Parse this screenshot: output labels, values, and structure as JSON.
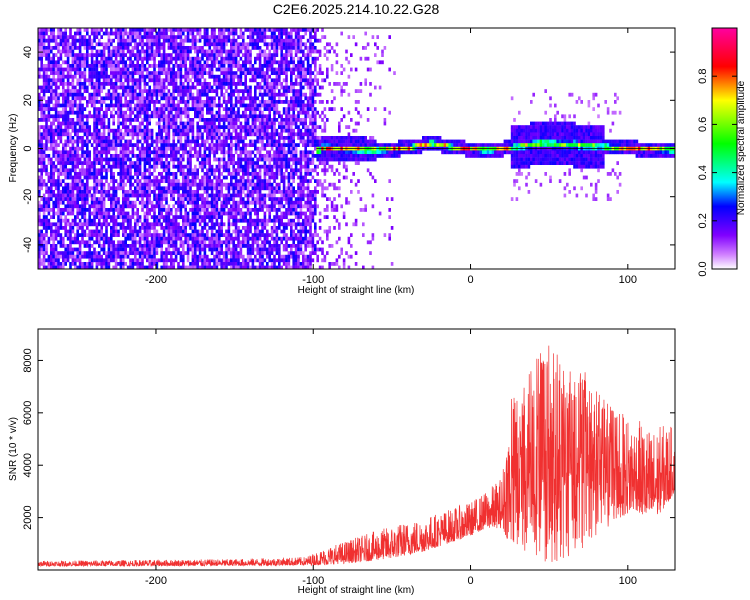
{
  "title": "C2E6.2025.214.10.22.G28",
  "chart_data": [
    {
      "type": "heatmap",
      "title": "C2E6.2025.214.10.22.G28",
      "xlabel": "Height of straight line (km)",
      "ylabel": "Frequency (Hz)",
      "xlim": [
        -275,
        130
      ],
      "ylim": [
        -50,
        50
      ],
      "x_ticks": [
        -200,
        -100,
        0,
        100
      ],
      "y_ticks": [
        -40,
        -20,
        0,
        20,
        40
      ],
      "x_tick_labels": [
        "-200",
        "-100",
        "0",
        "100"
      ],
      "y_tick_labels": [
        "-40",
        "-20",
        "0",
        "20",
        "40"
      ],
      "colorbar": {
        "label": "Normalized spectral amplitude",
        "range": [
          0,
          1
        ],
        "ticks": [
          0.0,
          0.2,
          0.4,
          0.6,
          0.8
        ],
        "tick_labels": [
          "0.0",
          "0.2",
          "0.4",
          "0.6",
          "0.8"
        ],
        "colormap": [
          "#ffffff",
          "#d080ff",
          "#8000ff",
          "#0000ff",
          "#00ffff",
          "#00ff00",
          "#ffff00",
          "#ff0000",
          "#ff00a0"
        ]
      },
      "noise_region_x": [
        -275,
        -98
      ],
      "noise_region_amplitude": 0.2,
      "fade_region_x": [
        -98,
        -45
      ],
      "band_center_path": [
        [
          -95,
          1
        ],
        [
          -60,
          0
        ],
        [
          -40,
          1
        ],
        [
          -25,
          3
        ],
        [
          -10,
          1
        ],
        [
          10,
          0
        ],
        [
          25,
          1
        ],
        [
          45,
          3
        ],
        [
          70,
          2
        ],
        [
          95,
          1
        ],
        [
          130,
          0
        ]
      ],
      "band_peak_amplitude": 0.85
    },
    {
      "type": "line",
      "xlabel": "Height of straight line (km)",
      "ylabel": "SNR (10 * v/v)",
      "xlim": [
        -275,
        130
      ],
      "ylim": [
        0,
        9200
      ],
      "x_ticks": [
        -200,
        -100,
        0,
        100
      ],
      "y_ticks": [
        2000,
        4000,
        6000,
        8000
      ],
      "x_tick_labels": [
        "-200",
        "-100",
        "0",
        "100"
      ],
      "y_tick_labels": [
        "2000",
        "4000",
        "6000",
        "8000"
      ],
      "series": [
        {
          "color": "#f03030",
          "envelope": [
            [
              -275,
              150,
              350
            ],
            [
              -220,
              150,
              380
            ],
            [
              -150,
              160,
              420
            ],
            [
              -105,
              180,
              500
            ],
            [
              -90,
              200,
              900
            ],
            [
              -70,
              300,
              1300
            ],
            [
              -50,
              450,
              1700
            ],
            [
              -30,
              700,
              2000
            ],
            [
              -15,
              1000,
              2300
            ],
            [
              0,
              1300,
              2600
            ],
            [
              10,
              1600,
              3000
            ],
            [
              20,
              1600,
              3600
            ],
            [
              25,
              1000,
              6500
            ],
            [
              40,
              300,
              8000
            ],
            [
              50,
              200,
              9000
            ],
            [
              60,
              400,
              8000
            ],
            [
              75,
              900,
              7500
            ],
            [
              85,
              1500,
              6500
            ],
            [
              95,
              2000,
              6000
            ],
            [
              105,
              2300,
              5800
            ],
            [
              115,
              1800,
              5400
            ],
            [
              125,
              2500,
              5600
            ],
            [
              130,
              3000,
              5400
            ]
          ]
        }
      ]
    }
  ]
}
